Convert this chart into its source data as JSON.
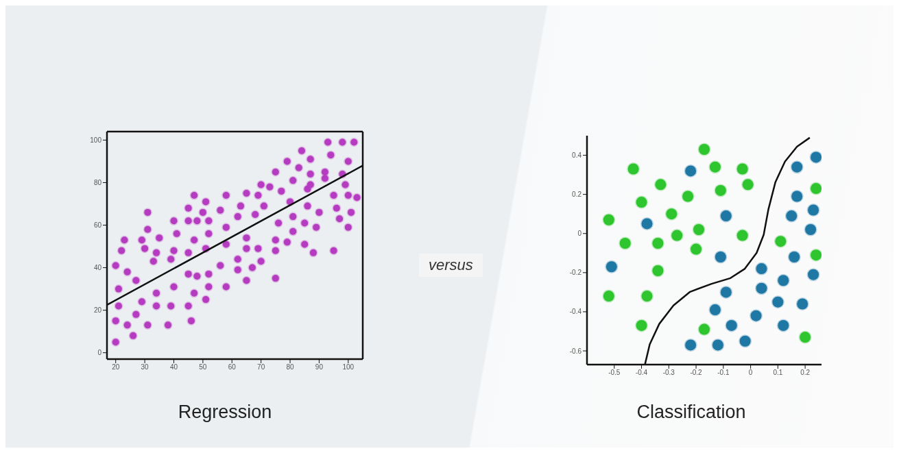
{
  "chart_data": [
    {
      "type": "scatter",
      "title": "Regression",
      "annotations": [
        "versus"
      ],
      "marker": "circle",
      "grid": false,
      "xlim": [
        17,
        105
      ],
      "xticks": [
        20,
        30,
        40,
        50,
        60,
        70,
        80,
        90,
        100
      ],
      "ylim": [
        -3,
        104
      ],
      "yticks": [
        0,
        20,
        40,
        60,
        80,
        100
      ],
      "series": [
        {
          "type": "scatter",
          "color": "#b53cc0",
          "x": [
            20,
            26,
            24,
            20,
            21,
            31,
            27,
            29,
            34,
            38,
            39,
            45,
            46,
            21,
            34,
            40,
            47,
            51,
            52,
            27,
            24,
            20,
            33,
            39,
            45,
            48,
            52,
            56,
            58,
            62,
            65,
            67,
            70,
            75,
            22,
            23,
            29,
            30,
            34,
            35,
            40,
            45,
            47,
            51,
            52,
            58,
            62,
            65,
            69,
            65,
            75,
            75,
            79,
            31,
            31,
            41,
            40,
            45,
            45,
            48,
            50,
            47,
            51,
            52,
            56,
            58,
            62,
            63,
            58,
            65,
            68,
            69,
            70,
            71,
            73,
            75,
            76,
            77,
            80,
            79,
            81,
            81,
            81,
            83,
            84,
            85,
            86,
            86,
            85,
            88,
            87,
            87,
            87,
            89,
            90,
            92,
            93,
            94,
            92,
            95,
            96,
            97,
            95,
            98,
            98,
            99,
            100,
            102,
            100,
            101,
            100,
            103
          ],
          "values": [
            5,
            8,
            13,
            15,
            22,
            13,
            18,
            24,
            22,
            13,
            22,
            22,
            15,
            30,
            28,
            31,
            28,
            25,
            31,
            34,
            38,
            41,
            43,
            44,
            37,
            36,
            37,
            41,
            31,
            39,
            34,
            40,
            43,
            35,
            48,
            53,
            53,
            49,
            47,
            54,
            48,
            47,
            53,
            49,
            56,
            51,
            44,
            49,
            49,
            54,
            48,
            53,
            52,
            58,
            66,
            56,
            62,
            62,
            68,
            62,
            66,
            74,
            71,
            62,
            67,
            59,
            64,
            69,
            74,
            75,
            65,
            74,
            79,
            69,
            78,
            85,
            61,
            76,
            71,
            90,
            64,
            57,
            81,
            87,
            95,
            61,
            77,
            69,
            51,
            47,
            91,
            84,
            79,
            59,
            66,
            82,
            99,
            93,
            85,
            74,
            68,
            63,
            48,
            84,
            99,
            79,
            90,
            99,
            74,
            66,
            59,
            73
          ]
        },
        {
          "type": "line",
          "marker": "none",
          "color": "#111111",
          "x": [
            17,
            105
          ],
          "values": [
            22.5,
            88
          ]
        }
      ]
    },
    {
      "type": "scatter",
      "title": "Classification",
      "marker": "circle",
      "grid": false,
      "xlim": [
        -0.6,
        0.26
      ],
      "xticks": [
        -0.5,
        -0.4,
        -0.3,
        -0.2,
        -0.1,
        0,
        0.1,
        0.2
      ],
      "ylim": [
        -0.67,
        0.5
      ],
      "yticks": [
        -0.6,
        -0.4,
        -0.2,
        0,
        0.2,
        0.4
      ],
      "series": [
        {
          "type": "scatter",
          "color": "#2ec52e",
          "x": [
            -0.17,
            -0.43,
            -0.13,
            -0.03,
            -0.33,
            -0.01,
            -0.23,
            -0.11,
            -0.4,
            -0.29,
            -0.52,
            -0.19,
            -0.27,
            -0.03,
            -0.46,
            -0.34,
            -0.2,
            -0.34,
            -0.52,
            -0.38,
            -0.4,
            -0.17,
            0.24,
            0.11,
            0.24,
            0.2
          ],
          "values": [
            0.43,
            0.33,
            0.34,
            0.33,
            0.25,
            0.25,
            0.19,
            0.22,
            0.16,
            0.1,
            0.07,
            0.02,
            -0.01,
            -0.01,
            -0.05,
            -0.05,
            -0.08,
            -0.19,
            -0.32,
            -0.32,
            -0.47,
            -0.49,
            0.23,
            -0.04,
            -0.11,
            -0.53
          ]
        },
        {
          "type": "scatter",
          "color": "#1f78a4",
          "x": [
            -0.22,
            0.24,
            0.17,
            0.17,
            0.15,
            0.23,
            0.22,
            -0.09,
            -0.38,
            -0.51,
            -0.11,
            0.16,
            0.04,
            0.23,
            0.12,
            0.04,
            -0.09,
            0.1,
            0.19,
            -0.13,
            0.02,
            -0.07,
            0.12,
            -0.22,
            -0.12,
            -0.02
          ],
          "values": [
            0.32,
            0.39,
            0.34,
            0.19,
            0.09,
            0.12,
            0.02,
            0.09,
            0.05,
            -0.17,
            -0.12,
            -0.12,
            -0.18,
            -0.21,
            -0.24,
            -0.28,
            -0.3,
            -0.35,
            -0.36,
            -0.39,
            -0.42,
            -0.47,
            -0.47,
            -0.57,
            -0.57,
            -0.55
          ]
        },
        {
          "type": "line",
          "marker": "none",
          "color": "#111111",
          "x": [
            -0.387,
            -0.37,
            -0.335,
            -0.283,
            -0.222,
            -0.143,
            -0.074,
            -0.022,
            0.022,
            0.048,
            0.065,
            0.091,
            0.126,
            0.17,
            0.217
          ],
          "values": [
            -0.667,
            -0.567,
            -0.462,
            -0.368,
            -0.298,
            -0.257,
            -0.228,
            -0.181,
            -0.099,
            -0.006,
            0.122,
            0.263,
            0.368,
            0.444,
            0.49
          ]
        }
      ]
    }
  ]
}
